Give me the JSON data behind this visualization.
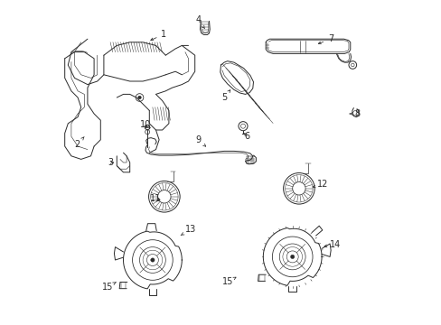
{
  "bg_color": "#ffffff",
  "line_color": "#2a2a2a",
  "lw": 0.7,
  "label_fs": 7,
  "figsize": [
    4.89,
    3.6
  ],
  "dpi": 100,
  "labels": {
    "1": [
      0.325,
      0.895,
      0.275,
      0.872
    ],
    "2": [
      0.058,
      0.555,
      0.085,
      0.585
    ],
    "3": [
      0.162,
      0.5,
      0.178,
      0.5
    ],
    "4": [
      0.43,
      0.94,
      0.455,
      0.905
    ],
    "5": [
      0.51,
      0.7,
      0.53,
      0.725
    ],
    "6": [
      0.58,
      0.58,
      0.567,
      0.598
    ],
    "7": [
      0.838,
      0.88,
      0.79,
      0.862
    ],
    "8": [
      0.92,
      0.65,
      0.895,
      0.65
    ],
    "9": [
      0.43,
      0.57,
      0.455,
      0.548
    ],
    "10": [
      0.268,
      0.618,
      0.274,
      0.598
    ],
    "11": [
      0.3,
      0.39,
      0.322,
      0.382
    ],
    "12": [
      0.812,
      0.432,
      0.78,
      0.424
    ],
    "13": [
      0.408,
      0.295,
      0.37,
      0.272
    ],
    "14": [
      0.852,
      0.248,
      0.808,
      0.24
    ],
    "15a": [
      0.152,
      0.118,
      0.178,
      0.132
    ],
    "15b": [
      0.52,
      0.132,
      0.548,
      0.148
    ]
  }
}
